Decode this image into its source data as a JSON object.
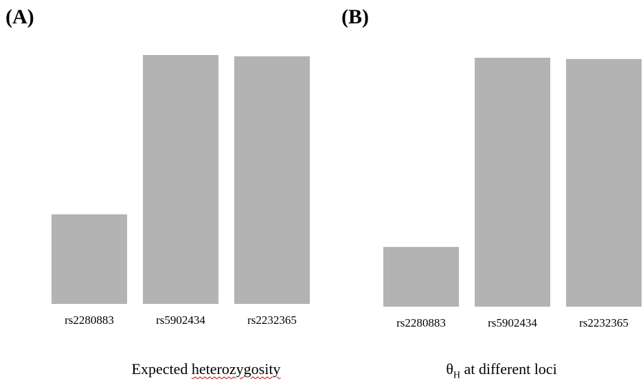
{
  "chart_data": [
    {
      "type": "bar",
      "panel_label": "(A)",
      "categories": [
        "rs2280883",
        "rs5902434",
        "rs2232365"
      ],
      "values": [
        0.36,
        1.0,
        0.995
      ],
      "xlabel": "Expected heterozygosity",
      "color": "#b3b3b3"
    },
    {
      "type": "bar",
      "panel_label": "(B)",
      "categories": [
        "rs2280883",
        "rs5902434",
        "rs2232365"
      ],
      "values": [
        0.24,
        1.0,
        0.995
      ],
      "xlabel_symbol": "θ",
      "xlabel_subscript": "H",
      "xlabel_rest": " at different loci",
      "color": "#b3b3b3"
    }
  ]
}
